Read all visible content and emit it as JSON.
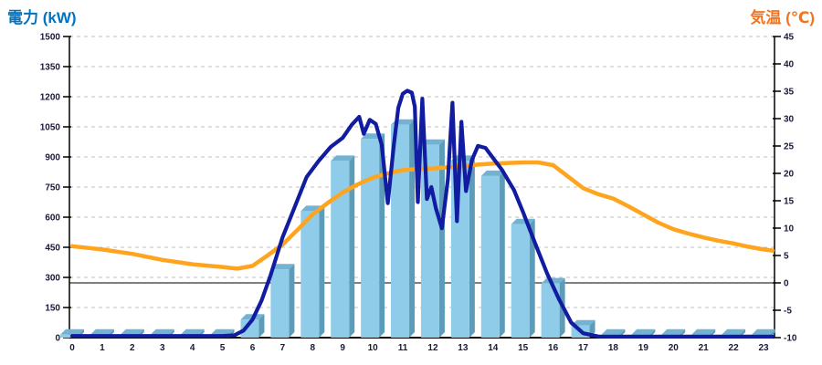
{
  "chart_data": {
    "type": "combo",
    "title_left": "電力 (kW)",
    "title_right": "気温 (℃)",
    "x_categories": [
      "0",
      "1",
      "2",
      "3",
      "4",
      "5",
      "6",
      "7",
      "8",
      "9",
      "10",
      "11",
      "12",
      "13",
      "14",
      "15",
      "16",
      "17",
      "18",
      "19",
      "20",
      "21",
      "22",
      "23"
    ],
    "left_axis": {
      "min": 0,
      "max": 1500,
      "step": 150,
      "tick_labels": [
        "0",
        "150",
        "300",
        "450",
        "600",
        "750",
        "900",
        "1050",
        "1200",
        "1350",
        "1500"
      ]
    },
    "right_axis": {
      "min": -10,
      "max": 45,
      "step": 5,
      "tick_labels": [
        "-10",
        "-5",
        "0",
        "5",
        "10",
        "15",
        "20",
        "25",
        "30",
        "35",
        "40",
        "45"
      ],
      "zero_line": true
    },
    "grid": "dashed",
    "legend": "none",
    "series": [
      {
        "name": "power-bars",
        "type": "bar",
        "axis": "left",
        "values": [
          15,
          15,
          15,
          15,
          15,
          15,
          90,
          340,
          630,
          880,
          990,
          1060,
          960,
          880,
          805,
          565,
          270,
          60,
          15,
          15,
          15,
          15,
          15,
          15
        ]
      },
      {
        "name": "power-line",
        "type": "line",
        "axis": "left",
        "points": [
          [
            0,
            8
          ],
          [
            1,
            8
          ],
          [
            2,
            8
          ],
          [
            3,
            8
          ],
          [
            4,
            8
          ],
          [
            5,
            8
          ],
          [
            5.4,
            12
          ],
          [
            5.7,
            35
          ],
          [
            6,
            90
          ],
          [
            6.3,
            185
          ],
          [
            6.6,
            310
          ],
          [
            7,
            500
          ],
          [
            7.4,
            650
          ],
          [
            7.8,
            800
          ],
          [
            8.2,
            880
          ],
          [
            8.6,
            950
          ],
          [
            9,
            995
          ],
          [
            9.3,
            1060
          ],
          [
            9.55,
            1100
          ],
          [
            9.7,
            1015
          ],
          [
            9.9,
            1085
          ],
          [
            10.1,
            1065
          ],
          [
            10.3,
            960
          ],
          [
            10.5,
            670
          ],
          [
            10.7,
            960
          ],
          [
            10.85,
            1145
          ],
          [
            11,
            1215
          ],
          [
            11.15,
            1230
          ],
          [
            11.3,
            1220
          ],
          [
            11.4,
            1150
          ],
          [
            11.5,
            675
          ],
          [
            11.65,
            1190
          ],
          [
            11.8,
            690
          ],
          [
            11.95,
            750
          ],
          [
            12.1,
            645
          ],
          [
            12.3,
            545
          ],
          [
            12.5,
            790
          ],
          [
            12.65,
            1170
          ],
          [
            12.8,
            580
          ],
          [
            12.95,
            1075
          ],
          [
            13.1,
            730
          ],
          [
            13.3,
            885
          ],
          [
            13.5,
            955
          ],
          [
            13.75,
            945
          ],
          [
            14,
            895
          ],
          [
            14.3,
            835
          ],
          [
            14.7,
            735
          ],
          [
            15,
            625
          ],
          [
            15.4,
            470
          ],
          [
            15.8,
            320
          ],
          [
            16.2,
            190
          ],
          [
            16.6,
            75
          ],
          [
            17,
            22
          ],
          [
            17.5,
            6
          ],
          [
            18,
            5
          ],
          [
            19,
            5
          ],
          [
            20,
            5
          ],
          [
            21,
            5
          ],
          [
            22,
            5
          ],
          [
            23,
            5
          ],
          [
            23.3,
            5
          ]
        ]
      },
      {
        "name": "temperature-line",
        "type": "line",
        "axis": "right",
        "points": [
          [
            0,
            6.7
          ],
          [
            1,
            6.1
          ],
          [
            2,
            5.3
          ],
          [
            3,
            4.2
          ],
          [
            4,
            3.4
          ],
          [
            5,
            2.9
          ],
          [
            5.5,
            2.6
          ],
          [
            6,
            3.1
          ],
          [
            6.5,
            5.0
          ],
          [
            7,
            7.0
          ],
          [
            7.5,
            9.7
          ],
          [
            8,
            12.5
          ],
          [
            8.5,
            14.6
          ],
          [
            9,
            16.5
          ],
          [
            9.5,
            18.0
          ],
          [
            10,
            19.2
          ],
          [
            10.5,
            20.0
          ],
          [
            11,
            20.6
          ],
          [
            11.5,
            20.8
          ],
          [
            12,
            20.9
          ],
          [
            12.5,
            21.1
          ],
          [
            13,
            21.3
          ],
          [
            13.5,
            21.6
          ],
          [
            14,
            21.8
          ],
          [
            14.5,
            21.9
          ],
          [
            15,
            22.0
          ],
          [
            15.5,
            22.0
          ],
          [
            16,
            21.5
          ],
          [
            16.5,
            19.4
          ],
          [
            17,
            17.3
          ],
          [
            17.5,
            16.2
          ],
          [
            18,
            15.4
          ],
          [
            18.5,
            14.0
          ],
          [
            19,
            12.5
          ],
          [
            19.5,
            11.0
          ],
          [
            20,
            9.8
          ],
          [
            20.5,
            9.0
          ],
          [
            21,
            8.3
          ],
          [
            21.5,
            7.7
          ],
          [
            22,
            7.2
          ],
          [
            22.5,
            6.6
          ],
          [
            23,
            6.1
          ],
          [
            23.3,
            5.9
          ]
        ]
      }
    ],
    "colors": {
      "left_title": "#0073C2",
      "right_title": "#F4731C",
      "bar_face": "#8FCCEA",
      "bar_side": "#5C9CB8",
      "bar_top": "#72B2D2",
      "power_line": "#111CA0",
      "temp_line": "#FFA41E",
      "grid": "#C0C0C0",
      "axis": "#000000",
      "tick_text": "#1A1A38"
    }
  }
}
